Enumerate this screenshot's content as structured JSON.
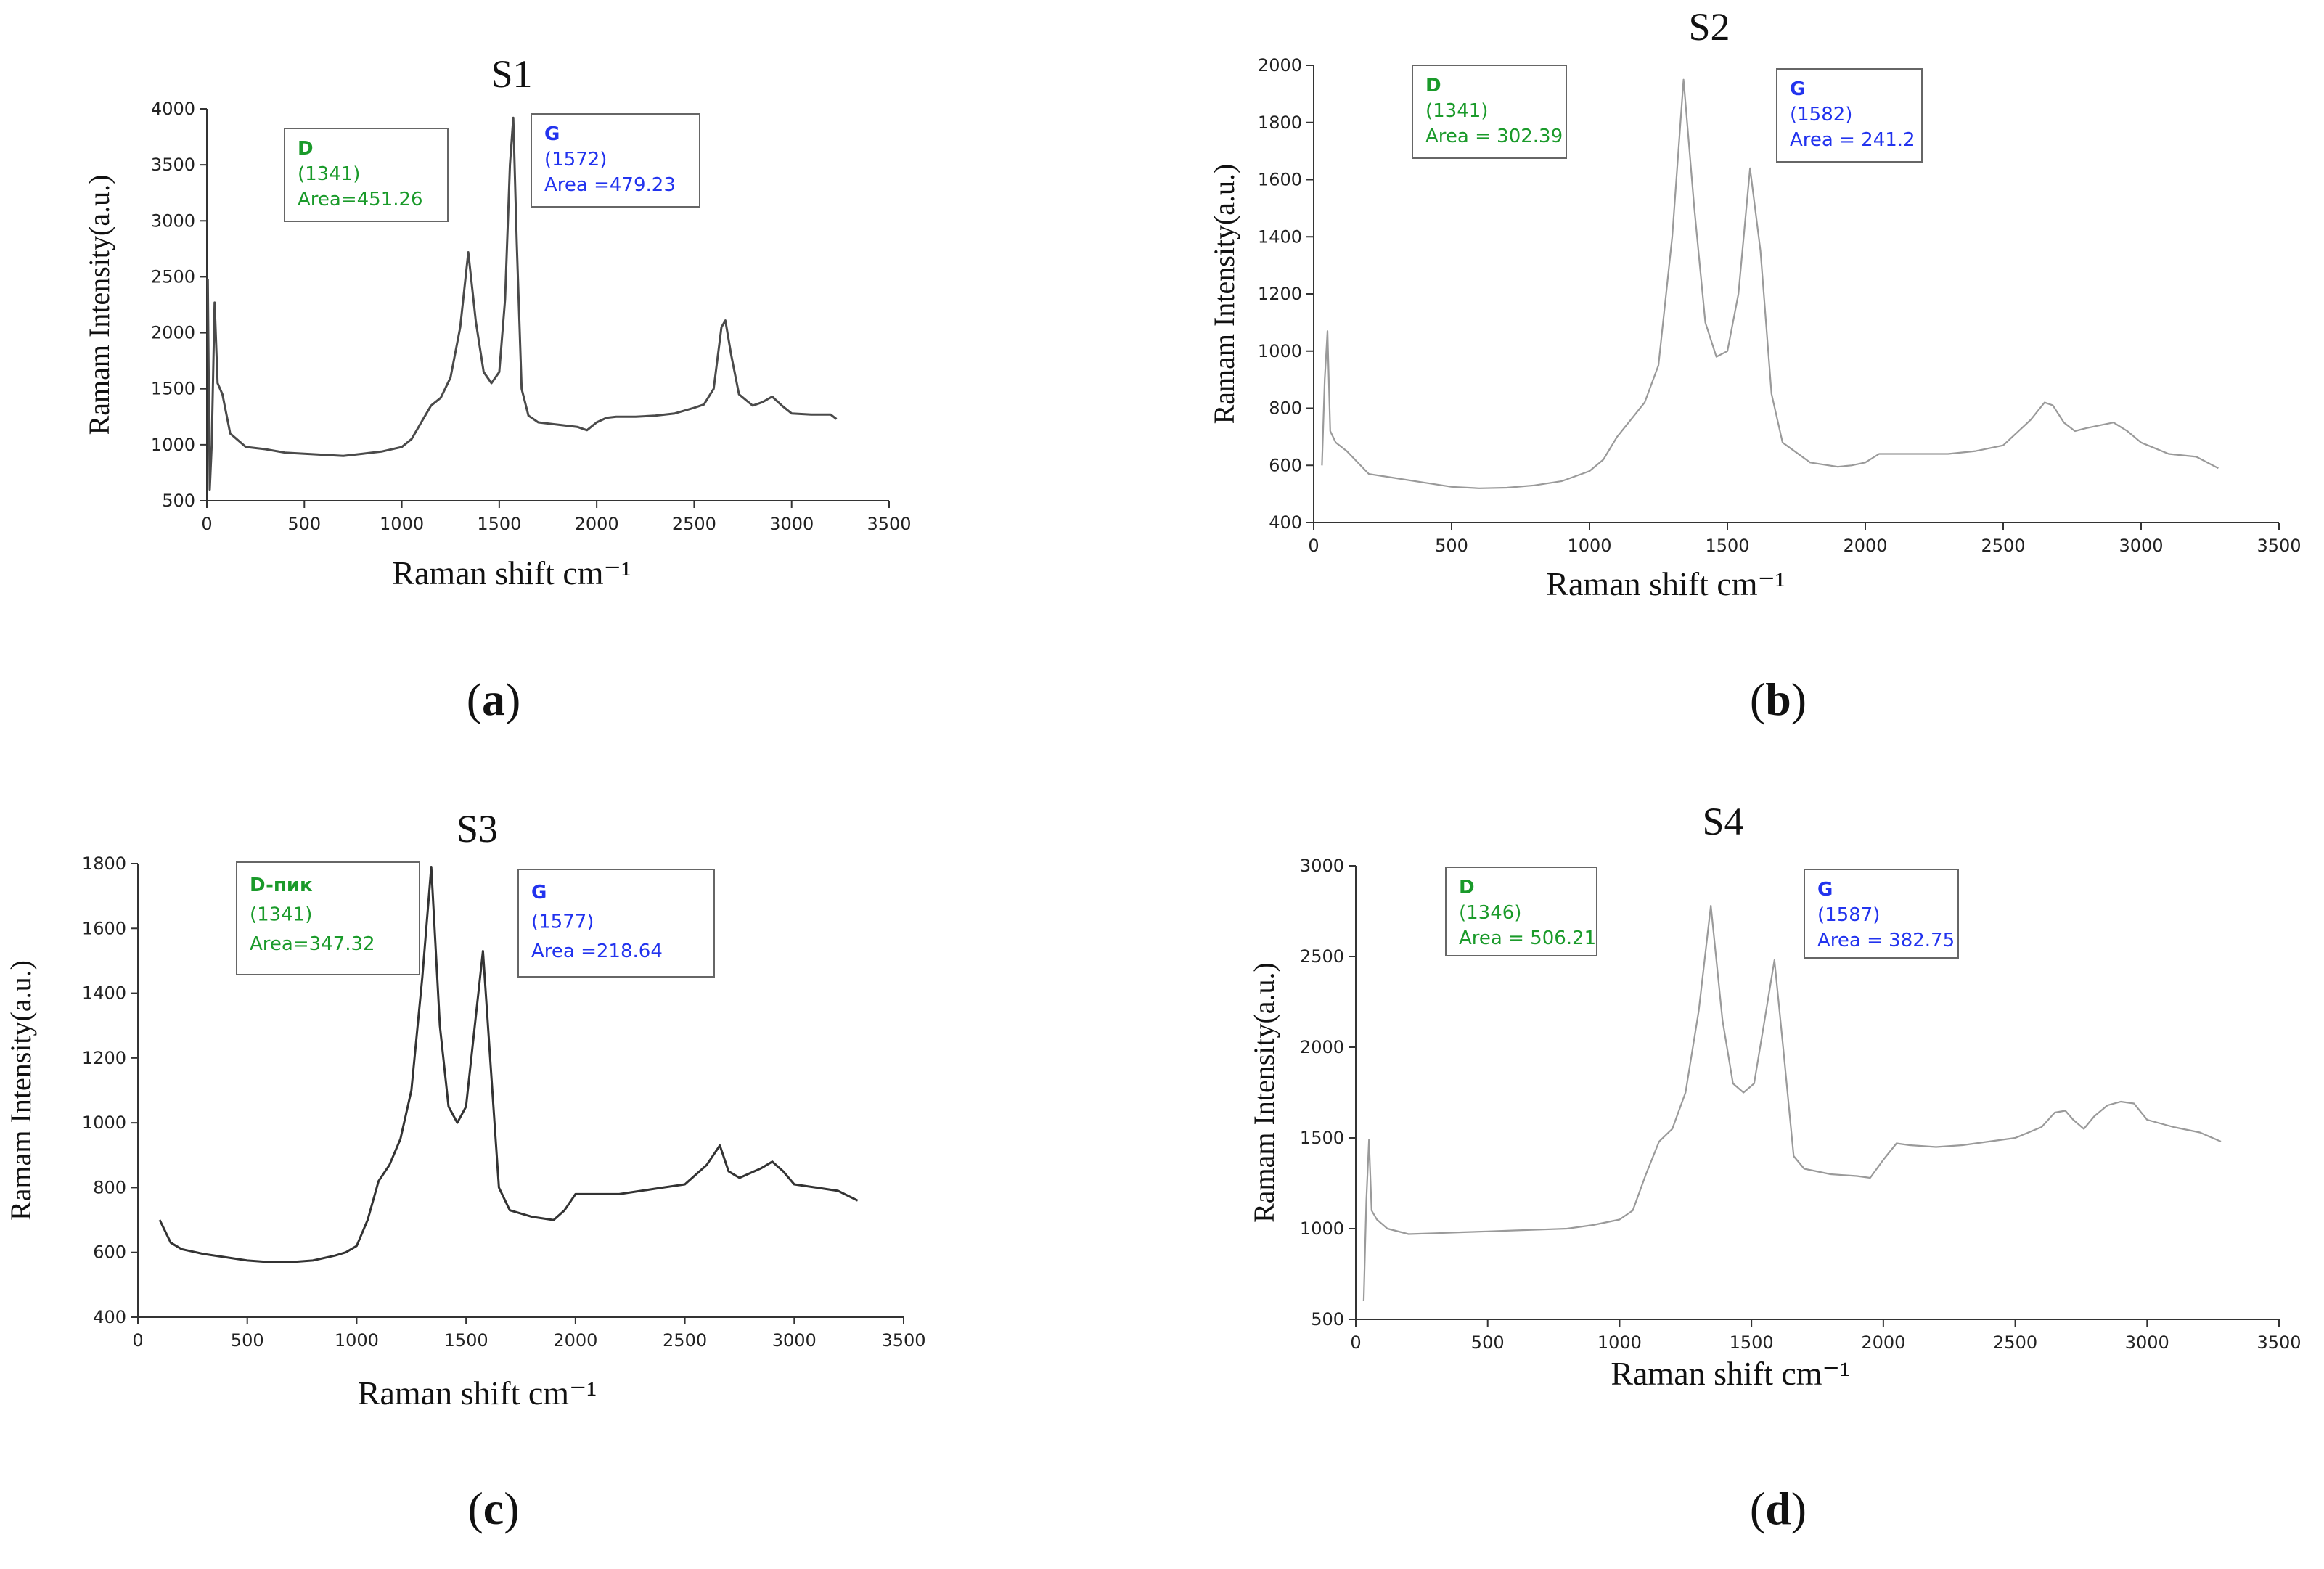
{
  "chart_data": [
    {
      "id": "a",
      "type": "line",
      "title": "S1",
      "panel_label": "a",
      "xlabel": "Raman shift cm⁻¹",
      "ylabel": "Ramam Intensity(a.u.)",
      "xlim": [
        0,
        3500
      ],
      "ylim": [
        500,
        4000
      ],
      "xticks": [
        0,
        500,
        1000,
        1500,
        2000,
        2500,
        3000,
        3500
      ],
      "yticks": [
        500,
        1000,
        1500,
        2000,
        2500,
        3000,
        3500,
        4000
      ],
      "line_color": "#4a4a4a",
      "annotations": [
        {
          "peak": "D",
          "position": "(1341)",
          "area": "Area=451.26",
          "color": "#1a9a2a"
        },
        {
          "peak": "G",
          "position": "(1572)",
          "area": "Area =479.23",
          "color": "#2233ee"
        }
      ],
      "x": [
        5,
        15,
        25,
        40,
        55,
        80,
        120,
        200,
        300,
        400,
        500,
        600,
        700,
        800,
        900,
        1000,
        1050,
        1100,
        1150,
        1200,
        1250,
        1300,
        1341,
        1380,
        1420,
        1460,
        1500,
        1530,
        1555,
        1572,
        1590,
        1615,
        1650,
        1700,
        1800,
        1900,
        1950,
        2000,
        2050,
        2100,
        2200,
        2300,
        2400,
        2500,
        2550,
        2600,
        2640,
        2660,
        2690,
        2730,
        2800,
        2850,
        2900,
        2950,
        3000,
        3100,
        3200,
        3230
      ],
      "y": [
        2480,
        600,
        1000,
        2270,
        1550,
        1450,
        1100,
        980,
        960,
        930,
        920,
        910,
        900,
        920,
        940,
        980,
        1050,
        1200,
        1350,
        1420,
        1600,
        2050,
        2720,
        2100,
        1650,
        1550,
        1650,
        2300,
        3500,
        3920,
        2800,
        1500,
        1260,
        1200,
        1180,
        1160,
        1130,
        1200,
        1240,
        1250,
        1250,
        1260,
        1280,
        1330,
        1360,
        1500,
        2050,
        2110,
        1800,
        1450,
        1350,
        1380,
        1430,
        1350,
        1280,
        1270,
        1270,
        1230
      ]
    },
    {
      "id": "b",
      "type": "line",
      "title": "S2",
      "panel_label": "b",
      "xlabel": "Raman shift cm⁻¹",
      "ylabel": "Ramam Intensity(a.u.)",
      "xlim": [
        0,
        3500
      ],
      "ylim": [
        400,
        2000
      ],
      "xticks": [
        0,
        500,
        1000,
        1500,
        2000,
        2500,
        3000,
        3500
      ],
      "yticks": [
        400,
        600,
        800,
        1000,
        1200,
        1400,
        1600,
        1800,
        2000
      ],
      "line_color": "#9a9a9a",
      "annotations": [
        {
          "peak": "D",
          "position": "(1341)",
          "area": "Area = 302.39",
          "color": "#1a9a2a"
        },
        {
          "peak": "G",
          "position": "(1582)",
          "area": "Area = 241.2",
          "color": "#2233ee"
        }
      ],
      "x": [
        30,
        40,
        50,
        60,
        80,
        120,
        200,
        300,
        400,
        500,
        600,
        700,
        800,
        900,
        1000,
        1050,
        1100,
        1150,
        1200,
        1250,
        1300,
        1341,
        1380,
        1420,
        1460,
        1500,
        1540,
        1582,
        1620,
        1660,
        1700,
        1800,
        1900,
        1950,
        2000,
        2050,
        2100,
        2200,
        2300,
        2400,
        2500,
        2600,
        2650,
        2680,
        2720,
        2760,
        2800,
        2850,
        2900,
        2950,
        3000,
        3100,
        3200,
        3280
      ],
      "y": [
        600,
        900,
        1070,
        720,
        680,
        650,
        570,
        555,
        540,
        525,
        520,
        522,
        530,
        545,
        580,
        620,
        700,
        760,
        820,
        950,
        1400,
        1950,
        1500,
        1100,
        980,
        1000,
        1200,
        1640,
        1350,
        850,
        680,
        610,
        595,
        600,
        610,
        640,
        640,
        640,
        640,
        650,
        670,
        760,
        820,
        810,
        750,
        720,
        730,
        740,
        750,
        720,
        680,
        640,
        630,
        590
      ]
    },
    {
      "id": "c",
      "type": "line",
      "title": "S3",
      "panel_label": "c",
      "xlabel": "Raman shift cm⁻¹",
      "ylabel": "Ramam Intensity(a.u.)",
      "xlim": [
        0,
        3500
      ],
      "ylim": [
        400,
        1800
      ],
      "xticks": [
        0,
        500,
        1000,
        1500,
        2000,
        2500,
        3000,
        3500
      ],
      "yticks": [
        400,
        600,
        800,
        1000,
        1200,
        1400,
        1600,
        1800
      ],
      "line_color": "#333333",
      "annotations": [
        {
          "peak": "D-пик",
          "position": "(1341)",
          "area": "Area=347.32",
          "color": "#1a9a2a"
        },
        {
          "peak": "G",
          "position": "(1577)",
          "area": "Area =218.64",
          "color": "#2233ee"
        }
      ],
      "x": [
        100,
        150,
        200,
        300,
        400,
        500,
        600,
        700,
        800,
        900,
        950,
        1000,
        1050,
        1100,
        1150,
        1200,
        1250,
        1300,
        1341,
        1380,
        1420,
        1460,
        1500,
        1540,
        1577,
        1610,
        1650,
        1700,
        1800,
        1900,
        1950,
        2000,
        2100,
        2200,
        2300,
        2400,
        2500,
        2600,
        2660,
        2700,
        2750,
        2850,
        2900,
        2950,
        3000,
        3100,
        3200,
        3290
      ],
      "y": [
        700,
        630,
        610,
        595,
        585,
        575,
        570,
        570,
        575,
        590,
        600,
        620,
        700,
        820,
        870,
        950,
        1100,
        1450,
        1790,
        1300,
        1050,
        1000,
        1050,
        1300,
        1530,
        1200,
        800,
        730,
        710,
        700,
        730,
        780,
        780,
        780,
        790,
        800,
        810,
        870,
        930,
        850,
        830,
        860,
        880,
        850,
        810,
        800,
        790,
        760
      ]
    },
    {
      "id": "d",
      "type": "line",
      "title": "S4",
      "panel_label": "d",
      "xlabel": "Raman shift cm⁻¹",
      "ylabel": "Ramam Intensity(a.u.)",
      "xlim": [
        0,
        3500
      ],
      "ylim": [
        500,
        3000
      ],
      "xticks": [
        0,
        500,
        1000,
        1500,
        2000,
        2500,
        3000,
        3500
      ],
      "yticks": [
        500,
        1000,
        1500,
        2000,
        2500,
        3000
      ],
      "line_color": "#9a9a9a",
      "annotations": [
        {
          "peak": "D",
          "position": "(1346)",
          "area": "Area = 506.21",
          "color": "#1a9a2a"
        },
        {
          "peak": "G",
          "position": "(1587)",
          "area": "Area = 382.75",
          "color": "#2233ee"
        }
      ],
      "x": [
        30,
        40,
        50,
        60,
        80,
        120,
        200,
        300,
        400,
        500,
        600,
        700,
        800,
        900,
        1000,
        1050,
        1100,
        1150,
        1200,
        1250,
        1300,
        1346,
        1390,
        1430,
        1470,
        1510,
        1550,
        1587,
        1620,
        1660,
        1700,
        1800,
        1900,
        1950,
        2000,
        2050,
        2100,
        2200,
        2300,
        2400,
        2500,
        2600,
        2650,
        2690,
        2720,
        2760,
        2800,
        2850,
        2900,
        2950,
        3000,
        3100,
        3200,
        3280
      ],
      "y": [
        600,
        1150,
        1490,
        1100,
        1050,
        1000,
        970,
        975,
        980,
        985,
        990,
        995,
        1000,
        1020,
        1050,
        1100,
        1300,
        1480,
        1550,
        1750,
        2200,
        2780,
        2150,
        1800,
        1750,
        1800,
        2150,
        2480,
        2000,
        1400,
        1330,
        1300,
        1290,
        1280,
        1380,
        1470,
        1460,
        1450,
        1460,
        1480,
        1500,
        1560,
        1640,
        1650,
        1600,
        1550,
        1620,
        1680,
        1700,
        1690,
        1600,
        1560,
        1530,
        1480
      ]
    }
  ]
}
